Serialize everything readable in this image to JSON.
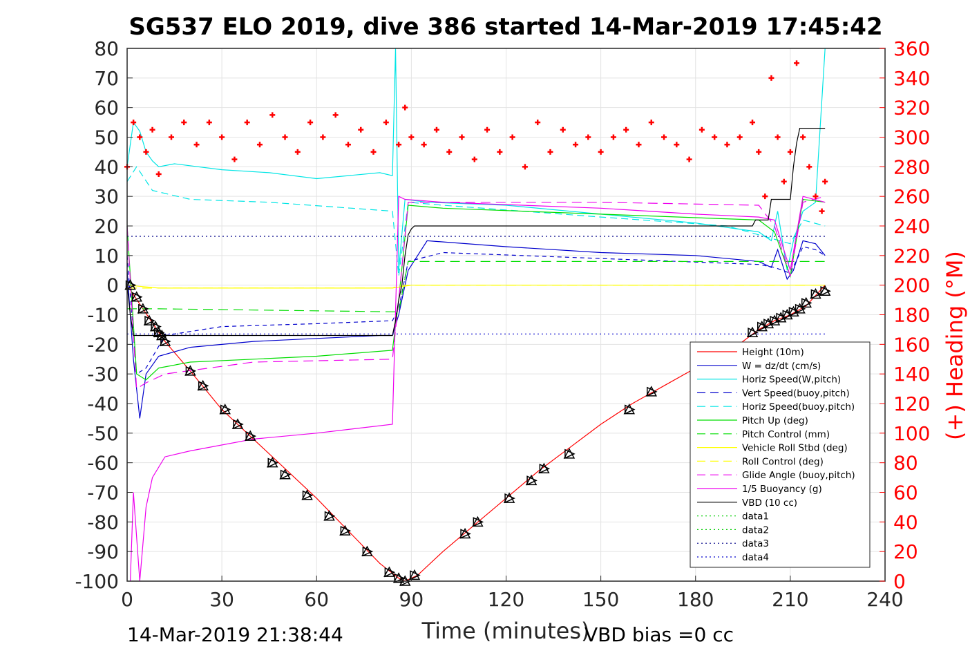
{
  "chart_data": {
    "type": "line",
    "title": "SG537 ELO 2019, dive 386 started 14-Mar-2019 17:45:42",
    "xlabel": "Time (minutes)",
    "ylabel_right": "(+) Heading (°M)",
    "footer_left": "14-Mar-2019 21:38:44",
    "footer_right": "VBD bias =0 cc",
    "xlim": [
      0,
      240
    ],
    "ylim": [
      -100,
      80
    ],
    "ylim_right": [
      0,
      360
    ],
    "x_ticks": [
      "0",
      "30",
      "60",
      "90",
      "120",
      "150",
      "180",
      "210",
      "240"
    ],
    "y_ticks": [
      "80",
      "70",
      "60",
      "50",
      "40",
      "30",
      "20",
      "10",
      "0",
      "-10",
      "-20",
      "-30",
      "-40",
      "-50",
      "-60",
      "-70",
      "-80",
      "-90",
      "-100"
    ],
    "y_right_ticks": [
      "360",
      "340",
      "320",
      "300",
      "280",
      "260",
      "240",
      "220",
      "200",
      "180",
      "160",
      "140",
      "120",
      "100",
      "80",
      "60",
      "40",
      "20",
      "0"
    ],
    "grid": true,
    "legend_position": "lower-right",
    "legend": [
      {
        "label": "Height (10m)",
        "color": "#ff0000",
        "dash": "solid"
      },
      {
        "label": "W = dz/dt (cm/s)",
        "color": "#0000cc",
        "dash": "solid"
      },
      {
        "label": "Horiz Speed(W,pitch)",
        "color": "#00e5e5",
        "dash": "solid"
      },
      {
        "label": "Vert Speed(buoy,pitch)",
        "color": "#0000cc",
        "dash": "dashed"
      },
      {
        "label": "Horiz Speed(buoy,pitch)",
        "color": "#00e5e5",
        "dash": "dashed"
      },
      {
        "label": "Pitch Up (deg)",
        "color": "#00dd00",
        "dash": "solid"
      },
      {
        "label": "Pitch Control (mm)",
        "color": "#00dd00",
        "dash": "dashed"
      },
      {
        "label": "Vehicle Roll Stbd (deg)",
        "color": "#ffff00",
        "dash": "solid"
      },
      {
        "label": "Roll Control (deg)",
        "color": "#ffff00",
        "dash": "dashed"
      },
      {
        "label": "Glide Angle (buoy,pitch)",
        "color": "#ee00ee",
        "dash": "dashed"
      },
      {
        "label": "1/5 Buoyancy (g)",
        "color": "#ee00ee",
        "dash": "solid"
      },
      {
        "label": "VBD (10 cc)",
        "color": "#000000",
        "dash": "solid"
      },
      {
        "label": "data1",
        "color": "#00cc00",
        "dash": "dotted"
      },
      {
        "label": "data2",
        "color": "#00cc00",
        "dash": "dotted"
      },
      {
        "label": "data3",
        "color": "#000088",
        "dash": "dotted"
      },
      {
        "label": "data4",
        "color": "#0000cc",
        "dash": "dotted"
      }
    ],
    "series": [
      {
        "name": "Height (10m)",
        "color": "#ff0000",
        "x": [
          0,
          5,
          12,
          20,
          30,
          40,
          50,
          60,
          70,
          80,
          86,
          88,
          92,
          100,
          110,
          120,
          130,
          140,
          150,
          160,
          170,
          180,
          190,
          200,
          205,
          210,
          215,
          221
        ],
        "y": [
          0,
          -8,
          -19,
          -29,
          -42,
          -52,
          -62,
          -72,
          -83,
          -94,
          -99,
          -100,
          -98,
          -90,
          -81,
          -72,
          -63,
          -55,
          -47,
          -40,
          -34,
          -28,
          -23,
          -15,
          -12,
          -10,
          -7,
          0
        ]
      },
      {
        "name": "W = dz/dt (cm/s)",
        "color": "#0000cc",
        "x": [
          0,
          2,
          4,
          6,
          10,
          20,
          40,
          60,
          80,
          84,
          86,
          89,
          95,
          120,
          150,
          180,
          200,
          204,
          206,
          209,
          211,
          214,
          218,
          221
        ],
        "y": [
          5,
          -25,
          -45,
          -30,
          -24,
          -21,
          -19,
          -18,
          -17,
          -17,
          -10,
          5,
          15,
          13,
          11,
          10,
          8,
          6,
          12,
          2,
          5,
          15,
          14,
          10
        ]
      },
      {
        "name": "Horiz Speed(W,pitch)",
        "color": "#00e5e5",
        "x": [
          0,
          2,
          4,
          6,
          8,
          10,
          15,
          30,
          45,
          60,
          80,
          84,
          85,
          86,
          88,
          95,
          120,
          150,
          180,
          200,
          204,
          206,
          209,
          211,
          214,
          218,
          221
        ],
        "y": [
          40,
          55,
          52,
          45,
          42,
          40,
          41,
          39,
          38,
          36,
          38,
          37,
          80,
          5,
          29,
          28,
          27,
          24,
          21,
          18,
          15,
          25,
          5,
          15,
          25,
          28,
          80
        ]
      },
      {
        "name": "Vert Speed(buoy,pitch)",
        "color": "#0000cc",
        "dash": "6,5",
        "x": [
          0,
          3,
          6,
          12,
          30,
          60,
          84,
          86,
          89,
          100,
          150,
          200,
          205,
          210,
          214,
          218,
          221
        ],
        "y": [
          10,
          -30,
          -28,
          -17,
          -14,
          -13,
          -12,
          -8,
          8,
          11,
          9,
          7,
          6,
          4,
          13,
          12,
          10
        ]
      },
      {
        "name": "Horiz Speed(buoy,pitch)",
        "color": "#00e5e5",
        "dash": "10,6",
        "x": [
          0,
          3,
          8,
          20,
          45,
          84,
          86,
          89,
          100,
          150,
          190,
          210,
          214,
          221
        ],
        "y": [
          35,
          40,
          32,
          29,
          28,
          25,
          3,
          28,
          27,
          23,
          20,
          14,
          22,
          20
        ]
      },
      {
        "name": "Pitch Up (deg)",
        "color": "#00dd00",
        "x": [
          0,
          3,
          6,
          10,
          20,
          40,
          60,
          84,
          86,
          89,
          100,
          150,
          200,
          205,
          210,
          214,
          221
        ],
        "y": [
          20,
          -30,
          -32,
          -28,
          -26,
          -25,
          -24,
          -22,
          -5,
          27,
          26,
          24,
          22,
          18,
          3,
          29,
          28
        ]
      },
      {
        "name": "Pitch Control (mm)",
        "color": "#00dd00",
        "dash": "14,8",
        "x": [
          0,
          10,
          84,
          86,
          89,
          221
        ],
        "y": [
          -8,
          -8,
          -9,
          -9,
          8,
          8
        ]
      },
      {
        "name": "Vehicle Roll Stbd (deg)",
        "color": "#ffff00",
        "x": [
          0,
          10,
          30,
          60,
          84,
          90,
          120,
          150,
          180,
          205,
          215,
          221
        ],
        "y": [
          0,
          -1,
          -1,
          -1,
          -1,
          0,
          0,
          0,
          0,
          0,
          0,
          0
        ]
      },
      {
        "name": "Roll Control (deg)",
        "color": "#ffff00",
        "dash": "14,8",
        "x": [
          0,
          84,
          86,
          221
        ],
        "y": [
          -1,
          -1,
          0,
          0
        ]
      },
      {
        "name": "Glide Angle (buoy,pitch)",
        "color": "#ee00ee",
        "dash": "14,8",
        "x": [
          0,
          3,
          6,
          12,
          40,
          84,
          86,
          89,
          120,
          150,
          200,
          205,
          210,
          214,
          221
        ],
        "y": [
          20,
          -35,
          -33,
          -30,
          -26,
          -25,
          -5,
          28,
          28,
          28,
          27,
          20,
          3,
          28,
          30
        ]
      },
      {
        "name": "1/5 Buoyancy (g)",
        "color": "#ee00ee",
        "x": [
          1,
          2,
          4,
          6,
          8,
          12,
          20,
          40,
          60,
          84,
          86,
          88,
          100,
          150,
          180,
          200,
          205,
          210,
          214,
          221
        ],
        "y": [
          -100,
          -70,
          -100,
          -75,
          -65,
          -58,
          -56,
          -52,
          -50,
          -47,
          30,
          29,
          28,
          26,
          24,
          23,
          22,
          5,
          30,
          28
        ]
      },
      {
        "name": "VBD (10 cc)",
        "color": "#000000",
        "x": [
          0,
          1,
          2,
          3,
          83,
          84,
          85,
          86,
          87,
          88,
          89,
          90,
          91,
          92,
          198,
          199,
          203,
          204,
          210,
          211,
          212,
          213,
          214,
          220,
          221
        ],
        "y": [
          0,
          -10,
          -17,
          -17,
          -17,
          -17,
          -12,
          -5,
          0,
          10,
          17,
          19,
          20,
          20,
          20,
          22,
          22,
          29,
          29,
          40,
          48,
          53,
          53,
          53,
          53
        ]
      },
      {
        "name": "data3",
        "color": "#000088",
        "dash": "2,4",
        "x": [
          0,
          221
        ],
        "y": [
          16.5,
          16.5
        ]
      },
      {
        "name": "data4",
        "color": "#0000cc",
        "dash": "2,4",
        "x": [
          0,
          221
        ],
        "y": [
          -16.5,
          -16.5
        ]
      }
    ],
    "heading": {
      "name": "(+) Heading (°M)",
      "color": "#ff0000",
      "x": [
        0,
        2,
        4,
        6,
        8,
        10,
        14,
        18,
        22,
        26,
        30,
        34,
        38,
        42,
        46,
        50,
        54,
        58,
        62,
        66,
        70,
        74,
        78,
        82,
        86,
        88,
        90,
        94,
        98,
        102,
        106,
        110,
        114,
        118,
        122,
        126,
        130,
        134,
        138,
        142,
        146,
        150,
        154,
        158,
        162,
        166,
        170,
        174,
        178,
        182,
        186,
        190,
        194,
        198,
        200,
        202,
        204,
        206,
        208,
        210,
        212,
        214,
        216,
        218,
        220,
        221
      ],
      "y": [
        280,
        310,
        300,
        290,
        305,
        275,
        300,
        310,
        295,
        310,
        300,
        285,
        310,
        295,
        315,
        300,
        290,
        310,
        300,
        315,
        295,
        305,
        290,
        310,
        295,
        320,
        300,
        295,
        305,
        290,
        300,
        285,
        305,
        290,
        300,
        280,
        310,
        290,
        305,
        295,
        300,
        290,
        300,
        305,
        295,
        310,
        300,
        295,
        285,
        305,
        300,
        295,
        300,
        310,
        290,
        260,
        340,
        300,
        270,
        290,
        350,
        300,
        280,
        260,
        250,
        270
      ]
    },
    "markers": {
      "name": "triangles",
      "color": "#000000",
      "x": [
        1,
        3,
        5,
        7,
        9,
        10,
        11,
        12,
        20,
        24,
        31,
        35,
        39,
        46,
        50,
        57,
        64,
        69,
        76,
        83,
        86,
        88,
        91,
        107,
        111,
        121,
        128,
        132,
        140,
        159,
        166,
        198,
        201,
        203,
        205,
        207,
        209,
        211,
        213,
        215,
        218,
        221
      ],
      "y": [
        0,
        -4,
        -8,
        -12,
        -14,
        -16,
        -17,
        -19,
        -29,
        -34,
        -42,
        -47,
        -51,
        -60,
        -64,
        -71,
        -78,
        -83,
        -90,
        -97,
        -99,
        -100,
        -98,
        -84,
        -80,
        -72,
        -66,
        -62,
        -57,
        -42,
        -36,
        -16,
        -14,
        -13,
        -12,
        -11,
        -10,
        -9,
        -8,
        -6,
        -3,
        -2
      ]
    }
  }
}
